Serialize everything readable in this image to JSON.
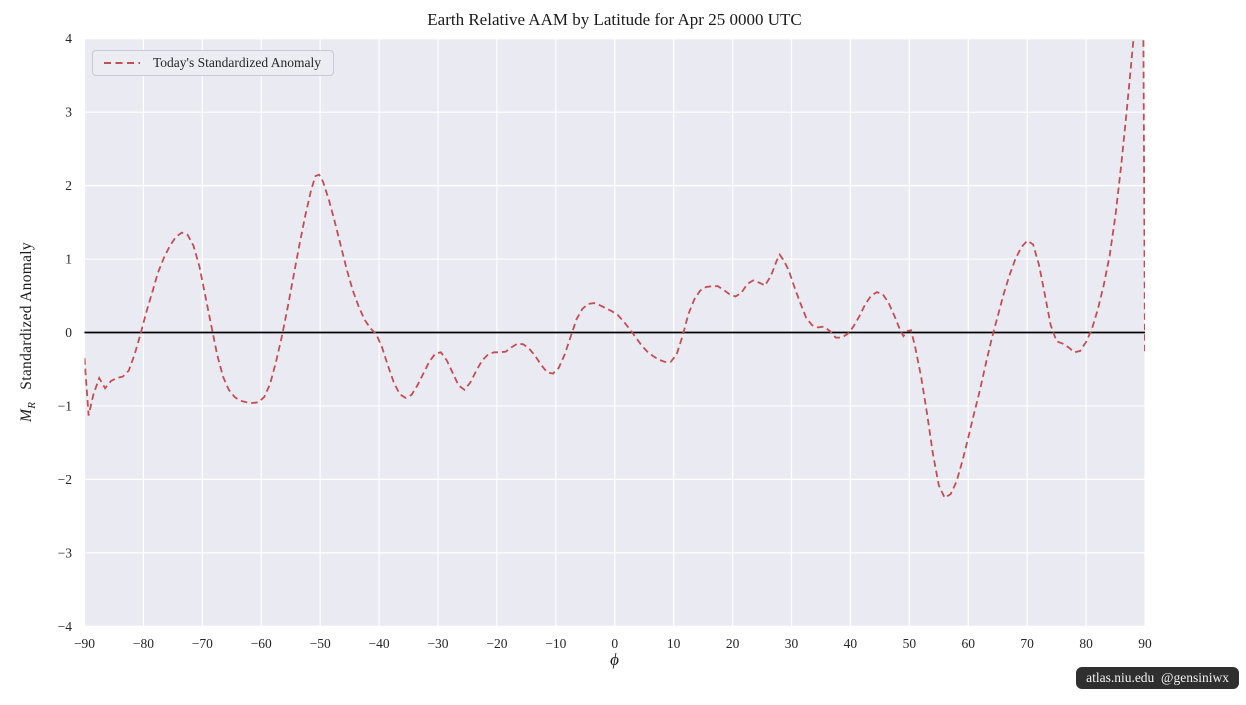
{
  "figure": {
    "title": "Earth Relative AAM by Latitude for Apr 25 0000 UTC",
    "watermark": "atlas.niu.edu  @gensiniwx"
  },
  "axes": {
    "xlabel": "ϕ",
    "ylabel_var": "M",
    "ylabel_sub": "R",
    "ylabel_text": "Standardized Anomaly"
  },
  "legend": {
    "entries": [
      {
        "label": "Today's Standardized Anomaly",
        "line_color": "#c44e52",
        "line_style": "dashed"
      }
    ]
  },
  "colors": {
    "plot_background": "#eaeaf2",
    "gridline": "#ffffff",
    "series_line": "#c44e52",
    "zero_line": "#000000",
    "tick_text": "#262626",
    "watermark_bg": "#101010",
    "watermark_text": "#f2f2f2"
  },
  "chart_data": {
    "type": "line",
    "title": "Earth Relative AAM by Latitude for Apr 25 0000 UTC",
    "xlabel": "ϕ",
    "ylabel": "M_R Standardized Anomaly",
    "xlim": [
      -90,
      90
    ],
    "ylim": [
      -4,
      4
    ],
    "grid": true,
    "zero_line": true,
    "legend_position": "upper left",
    "xticks": [
      -90,
      -80,
      -70,
      -60,
      -50,
      -40,
      -30,
      -20,
      -10,
      0,
      10,
      20,
      30,
      40,
      50,
      60,
      70,
      80,
      90
    ],
    "xtick_labels": [
      "−90",
      "−80",
      "−70",
      "−60",
      "−50",
      "−40",
      "−30",
      "−20",
      "−10",
      "0",
      "10",
      "20",
      "30",
      "40",
      "50",
      "60",
      "70",
      "80",
      "90"
    ],
    "yticks": [
      -4,
      -3,
      -2,
      -1,
      0,
      1,
      2,
      3,
      4
    ],
    "ytick_labels": [
      "−4",
      "−3",
      "−2",
      "−1",
      "0",
      "1",
      "2",
      "3",
      "4"
    ],
    "series": [
      {
        "name": "Today's Standardized Anomaly",
        "color": "#c44e52",
        "style": "dashed",
        "points": [
          [
            -90,
            -0.35
          ],
          [
            -89.3,
            -1.13
          ],
          [
            -88.5,
            -0.85
          ],
          [
            -87.5,
            -0.62
          ],
          [
            -86.5,
            -0.76
          ],
          [
            -85.5,
            -0.66
          ],
          [
            -84.5,
            -0.62
          ],
          [
            -83.5,
            -0.6
          ],
          [
            -82.5,
            -0.52
          ],
          [
            -81.5,
            -0.3
          ],
          [
            -80.5,
            -0.02
          ],
          [
            -79.5,
            0.28
          ],
          [
            -78.5,
            0.55
          ],
          [
            -77.5,
            0.82
          ],
          [
            -76.5,
            1.02
          ],
          [
            -75.5,
            1.18
          ],
          [
            -74.5,
            1.3
          ],
          [
            -73.5,
            1.36
          ],
          [
            -72.5,
            1.33
          ],
          [
            -71.5,
            1.18
          ],
          [
            -70.5,
            0.9
          ],
          [
            -69.5,
            0.5
          ],
          [
            -68.5,
            0.1
          ],
          [
            -67.5,
            -0.3
          ],
          [
            -66.5,
            -0.6
          ],
          [
            -65.5,
            -0.78
          ],
          [
            -64.5,
            -0.88
          ],
          [
            -63.5,
            -0.93
          ],
          [
            -62.5,
            -0.95
          ],
          [
            -61.5,
            -0.96
          ],
          [
            -60.5,
            -0.95
          ],
          [
            -59.5,
            -0.88
          ],
          [
            -58.5,
            -0.7
          ],
          [
            -57.5,
            -0.4
          ],
          [
            -56.5,
            -0.05
          ],
          [
            -55.5,
            0.35
          ],
          [
            -54.5,
            0.78
          ],
          [
            -53.5,
            1.2
          ],
          [
            -52.5,
            1.6
          ],
          [
            -51.5,
            1.95
          ],
          [
            -50.8,
            2.13
          ],
          [
            -50.2,
            2.15
          ],
          [
            -49.5,
            2.05
          ],
          [
            -48.5,
            1.8
          ],
          [
            -47.5,
            1.5
          ],
          [
            -46.5,
            1.18
          ],
          [
            -45.5,
            0.86
          ],
          [
            -44.5,
            0.58
          ],
          [
            -43.5,
            0.36
          ],
          [
            -42.5,
            0.18
          ],
          [
            -41.5,
            0.06
          ],
          [
            -40.5,
            -0.02
          ],
          [
            -39.5,
            -0.2
          ],
          [
            -38.5,
            -0.45
          ],
          [
            -37.5,
            -0.68
          ],
          [
            -36.5,
            -0.84
          ],
          [
            -35.5,
            -0.89
          ],
          [
            -34.5,
            -0.85
          ],
          [
            -33.5,
            -0.72
          ],
          [
            -32.5,
            -0.56
          ],
          [
            -31.5,
            -0.4
          ],
          [
            -30.5,
            -0.29
          ],
          [
            -29.5,
            -0.27
          ],
          [
            -28.5,
            -0.38
          ],
          [
            -27.5,
            -0.55
          ],
          [
            -26.5,
            -0.72
          ],
          [
            -25.5,
            -0.78
          ],
          [
            -24.5,
            -0.68
          ],
          [
            -23.5,
            -0.52
          ],
          [
            -22.5,
            -0.38
          ],
          [
            -21.5,
            -0.3
          ],
          [
            -20.5,
            -0.27
          ],
          [
            -19.5,
            -0.27
          ],
          [
            -18.5,
            -0.26
          ],
          [
            -17.5,
            -0.2
          ],
          [
            -16.5,
            -0.15
          ],
          [
            -15.5,
            -0.16
          ],
          [
            -14.5,
            -0.22
          ],
          [
            -13.5,
            -0.32
          ],
          [
            -12.5,
            -0.44
          ],
          [
            -11.5,
            -0.54
          ],
          [
            -10.5,
            -0.56
          ],
          [
            -9.5,
            -0.48
          ],
          [
            -8.5,
            -0.3
          ],
          [
            -7.5,
            -0.06
          ],
          [
            -6.5,
            0.18
          ],
          [
            -5.5,
            0.32
          ],
          [
            -4.5,
            0.39
          ],
          [
            -3.5,
            0.4
          ],
          [
            -2.5,
            0.37
          ],
          [
            -1.5,
            0.33
          ],
          [
            -0.5,
            0.29
          ],
          [
            0.5,
            0.24
          ],
          [
            1.5,
            0.15
          ],
          [
            2.5,
            0.05
          ],
          [
            3.5,
            -0.06
          ],
          [
            4.5,
            -0.17
          ],
          [
            5.5,
            -0.26
          ],
          [
            6.5,
            -0.32
          ],
          [
            7.5,
            -0.37
          ],
          [
            8.5,
            -0.4
          ],
          [
            9.5,
            -0.4
          ],
          [
            10.5,
            -0.3
          ],
          [
            11.5,
            -0.05
          ],
          [
            12.5,
            0.25
          ],
          [
            13.5,
            0.45
          ],
          [
            14.5,
            0.57
          ],
          [
            15.5,
            0.62
          ],
          [
            16.5,
            0.63
          ],
          [
            17.5,
            0.63
          ],
          [
            18.5,
            0.58
          ],
          [
            19.5,
            0.52
          ],
          [
            20.5,
            0.49
          ],
          [
            21.5,
            0.54
          ],
          [
            22.5,
            0.66
          ],
          [
            23.5,
            0.71
          ],
          [
            24.5,
            0.68
          ],
          [
            25.5,
            0.64
          ],
          [
            26.5,
            0.77
          ],
          [
            27.5,
            0.98
          ],
          [
            28,
            1.06
          ],
          [
            28.7,
            0.98
          ],
          [
            29.5,
            0.85
          ],
          [
            30.5,
            0.62
          ],
          [
            31.5,
            0.4
          ],
          [
            32.5,
            0.2
          ],
          [
            33.5,
            0.1
          ],
          [
            34.5,
            0.07
          ],
          [
            35.5,
            0.08
          ],
          [
            36.5,
            0.02
          ],
          [
            37.5,
            -0.07
          ],
          [
            38.5,
            -0.07
          ],
          [
            39.5,
            -0.02
          ],
          [
            40.5,
            0.08
          ],
          [
            41.5,
            0.22
          ],
          [
            42.5,
            0.38
          ],
          [
            43.5,
            0.5
          ],
          [
            44.5,
            0.55
          ],
          [
            45.5,
            0.52
          ],
          [
            46.5,
            0.4
          ],
          [
            47.5,
            0.22
          ],
          [
            48.5,
            0.02
          ],
          [
            49,
            -0.05
          ],
          [
            49.7,
            0.02
          ],
          [
            50.3,
            0.03
          ],
          [
            51,
            -0.2
          ],
          [
            52,
            -0.6
          ],
          [
            53,
            -1.1
          ],
          [
            54,
            -1.65
          ],
          [
            55,
            -2.08
          ],
          [
            56,
            -2.25
          ],
          [
            57,
            -2.2
          ],
          [
            58,
            -2.03
          ],
          [
            59,
            -1.75
          ],
          [
            60,
            -1.43
          ],
          [
            61,
            -1.1
          ],
          [
            62,
            -0.78
          ],
          [
            63,
            -0.42
          ],
          [
            64,
            -0.08
          ],
          [
            65,
            0.22
          ],
          [
            66,
            0.52
          ],
          [
            67,
            0.78
          ],
          [
            68,
            1.0
          ],
          [
            69,
            1.16
          ],
          [
            70,
            1.25
          ],
          [
            71,
            1.2
          ],
          [
            72,
            0.92
          ],
          [
            73,
            0.52
          ],
          [
            74,
            0.1
          ],
          [
            75,
            -0.12
          ],
          [
            76,
            -0.15
          ],
          [
            77,
            -0.2
          ],
          [
            78,
            -0.27
          ],
          [
            79,
            -0.25
          ],
          [
            80,
            -0.13
          ],
          [
            81,
            0.05
          ],
          [
            82,
            0.32
          ],
          [
            83,
            0.65
          ],
          [
            84,
            1.05
          ],
          [
            85,
            1.6
          ],
          [
            86,
            2.3
          ],
          [
            87,
            3.1
          ],
          [
            88,
            3.95
          ],
          [
            88.7,
            4.8
          ],
          [
            89.5,
            7.5
          ],
          [
            90,
            -0.3
          ]
        ]
      }
    ]
  }
}
